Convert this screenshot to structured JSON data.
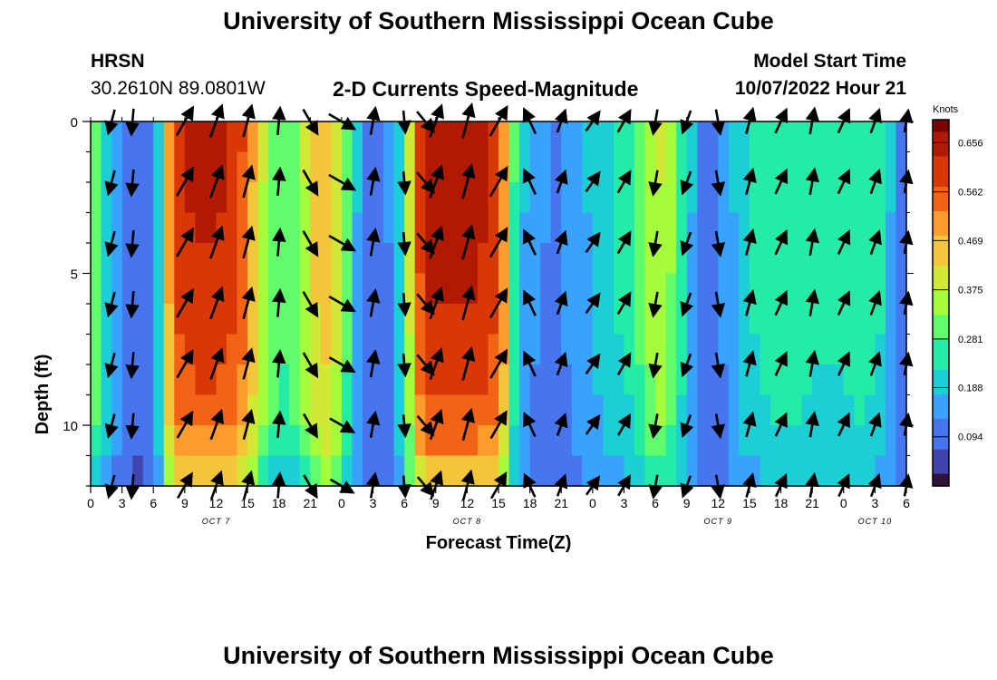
{
  "header": {
    "title": "University of Southern Mississippi Ocean Cube",
    "station": "HRSN",
    "coords": "30.2610N  89.0801W",
    "model_start_label": "Model Start Time",
    "model_start_value": "10/07/2022 Hour 21",
    "footer_title": "University of Southern Mississippi Ocean Cube"
  },
  "colors": {
    "arrow": "#000000",
    "palette": [
      "#30123b",
      "#4145ab",
      "#4675ed",
      "#39a2fc",
      "#1bcfd4",
      "#24eca6",
      "#61fc6c",
      "#a4fc3b",
      "#d1e834",
      "#f3c63a",
      "#fe9b2d",
      "#f36315",
      "#d93806",
      "#b11901",
      "#7a0402"
    ]
  },
  "chart_data": {
    "type": "heatmap",
    "title": "2-D Currents Speed-Magnitude",
    "xlabel": "Forecast Time(Z)",
    "ylabel": "Depth (ft)",
    "xlim": [
      0,
      78
    ],
    "ylim": [
      0,
      12
    ],
    "y_inverted": true,
    "x_ticks": [
      0,
      3,
      6,
      9,
      12,
      15,
      18,
      21,
      24,
      27,
      30,
      33,
      36,
      39,
      42,
      45,
      48,
      51,
      54,
      57,
      60,
      63,
      66,
      69,
      72,
      75,
      78
    ],
    "x_tick_labels": [
      "0",
      "3",
      "6",
      "9",
      "12",
      "15",
      "18",
      "21",
      "0",
      "3",
      "6",
      "9",
      "12",
      "15",
      "18",
      "21",
      "0",
      "3",
      "6",
      "9",
      "12",
      "15",
      "18",
      "21",
      "0",
      "3",
      "6"
    ],
    "y_ticks": [
      0,
      5,
      10
    ],
    "y_tick_labels": [
      "0",
      "5",
      "10"
    ],
    "date_labels": [
      {
        "x": 12,
        "label": "OCT 7"
      },
      {
        "x": 36,
        "label": "OCT 8"
      },
      {
        "x": 60,
        "label": "OCT 9"
      },
      {
        "x": 75,
        "label": "OCT 10"
      }
    ],
    "colorbar": {
      "label": "Knots",
      "min": 0.0,
      "max": 0.7,
      "ticks": [
        0.656,
        0.562,
        0.469,
        0.375,
        0.281,
        0.188,
        0.094
      ]
    },
    "time_steps": [
      0,
      1,
      2,
      3,
      4,
      5,
      6,
      7,
      8,
      9,
      10,
      11,
      12,
      13,
      14,
      15,
      16,
      17,
      18,
      19,
      20,
      21,
      22,
      23,
      24,
      25,
      26,
      27,
      28,
      29,
      30,
      31,
      32,
      33,
      34,
      35,
      36,
      37,
      38,
      39,
      40,
      41,
      42,
      43,
      44,
      45,
      46,
      47,
      48,
      49,
      50,
      51,
      52,
      53,
      54,
      55,
      56,
      57,
      58,
      59,
      60,
      61,
      62,
      63,
      64,
      65,
      66,
      67,
      68,
      69,
      70,
      71,
      72,
      73,
      74,
      75,
      76,
      77
    ],
    "depth_levels": [
      0,
      1,
      2,
      3,
      4,
      5,
      6,
      7,
      8,
      9,
      10,
      11
    ],
    "speed_profile_surface": [
      0.32,
      0.22,
      0.16,
      0.12,
      0.1,
      0.11,
      0.22,
      0.5,
      0.62,
      0.64,
      0.65,
      0.65,
      0.64,
      0.62,
      0.58,
      0.48,
      0.38,
      0.32,
      0.3,
      0.32,
      0.38,
      0.45,
      0.47,
      0.42,
      0.3,
      0.18,
      0.12,
      0.11,
      0.13,
      0.22,
      0.4,
      0.6,
      0.66,
      0.66,
      0.66,
      0.66,
      0.66,
      0.65,
      0.62,
      0.52,
      0.28,
      0.18,
      0.14,
      0.13,
      0.12,
      0.14,
      0.16,
      0.18,
      0.2,
      0.22,
      0.24,
      0.26,
      0.3,
      0.36,
      0.38,
      0.34,
      0.26,
      0.18,
      0.12,
      0.11,
      0.14,
      0.18,
      0.22,
      0.24,
      0.26,
      0.27,
      0.27,
      0.27,
      0.26,
      0.25,
      0.25,
      0.25,
      0.26,
      0.27,
      0.26,
      0.24,
      0.18,
      0.12
    ],
    "depth_factors": [
      1.0,
      0.99,
      0.98,
      0.97,
      0.96,
      0.95,
      0.94,
      0.92,
      0.89,
      0.86,
      0.8,
      0.7
    ],
    "arrow_times": [
      2,
      4,
      9,
      12,
      15,
      18,
      21,
      24,
      27,
      30,
      32,
      33,
      36,
      39,
      42,
      45,
      48,
      51,
      54,
      57,
      60,
      63,
      66,
      69,
      72,
      75,
      78
    ],
    "arrow_depths": [
      0,
      2,
      4,
      6,
      8,
      10,
      12
    ],
    "vectors_surface": [
      {
        "t": 2,
        "dir": 195,
        "m": 0.25
      },
      {
        "t": 4,
        "dir": 185,
        "m": 0.3
      },
      {
        "t": 9,
        "dir": 30,
        "m": 0.55
      },
      {
        "t": 12,
        "dir": 20,
        "m": 0.6
      },
      {
        "t": 15,
        "dir": 15,
        "m": 0.55
      },
      {
        "t": 18,
        "dir": 5,
        "m": 0.35
      },
      {
        "t": 21,
        "dir": 150,
        "m": 0.4
      },
      {
        "t": 24,
        "dir": 120,
        "m": 0.45
      },
      {
        "t": 27,
        "dir": 10,
        "m": 0.35
      },
      {
        "t": 30,
        "dir": 175,
        "m": 0.15
      },
      {
        "t": 32,
        "dir": 140,
        "m": 0.3
      },
      {
        "t": 33,
        "dir": 20,
        "m": 0.6
      },
      {
        "t": 36,
        "dir": 15,
        "m": 0.65
      },
      {
        "t": 39,
        "dir": 30,
        "m": 0.6
      },
      {
        "t": 42,
        "dir": 335,
        "m": 0.35
      },
      {
        "t": 45,
        "dir": 20,
        "m": 0.2
      },
      {
        "t": 48,
        "dir": 35,
        "m": 0.2
      },
      {
        "t": 51,
        "dir": 30,
        "m": 0.25
      },
      {
        "t": 54,
        "dir": 190,
        "m": 0.25
      },
      {
        "t": 57,
        "dir": 200,
        "m": 0.2
      },
      {
        "t": 60,
        "dir": 170,
        "m": 0.25
      },
      {
        "t": 63,
        "dir": 15,
        "m": 0.3
      },
      {
        "t": 66,
        "dir": 25,
        "m": 0.3
      },
      {
        "t": 69,
        "dir": 10,
        "m": 0.3
      },
      {
        "t": 72,
        "dir": 25,
        "m": 0.28
      },
      {
        "t": 75,
        "dir": 20,
        "m": 0.25
      },
      {
        "t": 78,
        "dir": 10,
        "m": 0.15
      }
    ]
  }
}
